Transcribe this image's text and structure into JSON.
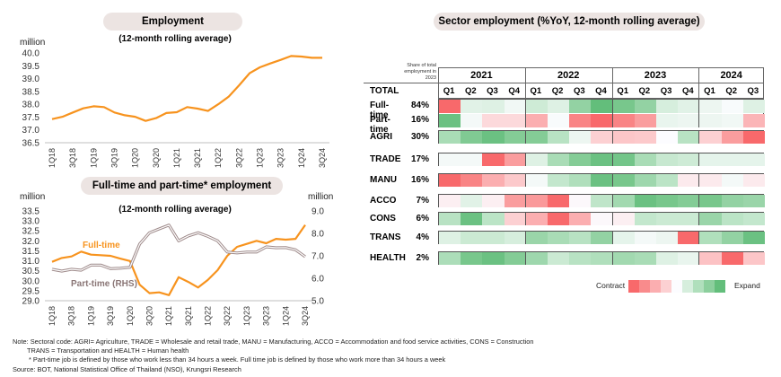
{
  "top_chart": {
    "title": "Employment",
    "subtitle": "(12-month rolling average)",
    "unit_left": "million"
  },
  "bottom_chart": {
    "title": "Full-time and part-time* employment",
    "subtitle": "(12-month rolling average)",
    "unit_left": "million",
    "unit_right": "million",
    "label_fulltime": "Full-time",
    "label_parttime": "Part-time (RHS)"
  },
  "heatmap_panel": {
    "title": "Sector employment (%YoY, 12-month rolling average)",
    "share_header": "Share of total employment in 2023",
    "total_label": "TOTAL",
    "legend_contract": "Contract",
    "legend_expand": "Expand"
  },
  "notes": {
    "line1": "Note: Sectoral code: AGRI= Agriculture, TRADE = Wholesale and retail trade, MANU = Manufacturing, ACCO = Accommodation and food service activities, CONS = Construction",
    "line2": "TRANS = Transportation and HEALTH = Human health",
    "line3": "* Part-time job is defined by those who work less than 34 hours a week. Full time job is defined by those who work  more than 34 hours a week",
    "source": "Source: BOT, National Statistical Office of Thailand (NSO), Krungsri Research"
  },
  "chart_data": [
    {
      "type": "line",
      "title": "Employment",
      "subtitle": "(12-month rolling average)",
      "ylabel": "million",
      "ylim": [
        36.5,
        40.0
      ],
      "yticks": [
        "40.0",
        "39.5",
        "39.0",
        "38.5",
        "38.0",
        "37.5",
        "37.0",
        "36.5"
      ],
      "ytick_values": [
        40.0,
        39.5,
        39.0,
        38.5,
        38.0,
        37.5,
        37.0,
        36.5
      ],
      "x": [
        "1Q18",
        "2Q18",
        "3Q18",
        "4Q18",
        "1Q19",
        "2Q19",
        "3Q19",
        "4Q19",
        "1Q20",
        "2Q20",
        "3Q20",
        "4Q20",
        "1Q21",
        "2Q21",
        "3Q21",
        "4Q21",
        "1Q22",
        "2Q22",
        "3Q22",
        "4Q22",
        "1Q23",
        "2Q23",
        "3Q23",
        "4Q23",
        "1Q24",
        "2Q24",
        "3Q24"
      ],
      "xtick_labels": [
        "1Q18",
        "3Q18",
        "1Q19",
        "3Q19",
        "1Q20",
        "3Q20",
        "1Q21",
        "3Q21",
        "1Q22",
        "3Q22",
        "1Q23",
        "3Q23",
        "1Q24",
        "3Q24"
      ],
      "series": [
        {
          "name": "Employment",
          "color": "#f7931e",
          "values": [
            37.42,
            37.51,
            37.68,
            37.84,
            37.92,
            37.89,
            37.68,
            37.57,
            37.51,
            37.35,
            37.46,
            37.66,
            37.69,
            37.89,
            37.83,
            37.74,
            38.0,
            38.3,
            38.74,
            39.21,
            39.44,
            39.59,
            39.73,
            39.88,
            39.86,
            39.81,
            39.81
          ]
        }
      ],
      "grid": false
    },
    {
      "type": "line",
      "title": "Full-time and part-time* employment",
      "subtitle": "(12-month rolling average)",
      "ylabel": "million",
      "ylabel_right": "million",
      "ylim": [
        29.0,
        33.5
      ],
      "ylim_right": [
        5.0,
        9.0
      ],
      "yticks": [
        "33.5",
        "33.0",
        "32.5",
        "32.0",
        "31.5",
        "31.0",
        "30.5",
        "30.0",
        "29.5",
        "29.0"
      ],
      "ytick_values": [
        33.5,
        33.0,
        32.5,
        32.0,
        31.5,
        31.0,
        30.5,
        30.0,
        29.5,
        29.0
      ],
      "yticks_right": [
        "9.0",
        "8.0",
        "7.0",
        "6.0",
        "5.0"
      ],
      "ytick_values_right": [
        9.0,
        8.0,
        7.0,
        6.0,
        5.0
      ],
      "x": [
        "1Q18",
        "2Q18",
        "3Q18",
        "4Q18",
        "1Q19",
        "2Q19",
        "3Q19",
        "4Q19",
        "1Q20",
        "2Q20",
        "3Q20",
        "4Q20",
        "1Q21",
        "2Q21",
        "3Q21",
        "4Q21",
        "1Q22",
        "2Q22",
        "3Q22",
        "4Q22",
        "1Q23",
        "2Q23",
        "3Q23",
        "4Q23",
        "1Q24",
        "2Q24",
        "3Q24"
      ],
      "xtick_labels": [
        "1Q18",
        "3Q18",
        "1Q19",
        "3Q19",
        "1Q20",
        "3Q20",
        "1Q21",
        "3Q21",
        "1Q22",
        "3Q22",
        "1Q23",
        "3Q23",
        "1Q24",
        "3Q24"
      ],
      "series": [
        {
          "name": "Full-time",
          "axis": "left",
          "color": "#f7931e",
          "values": [
            30.95,
            31.14,
            31.22,
            31.46,
            31.31,
            31.28,
            31.25,
            31.11,
            30.99,
            29.8,
            29.38,
            29.42,
            29.28,
            30.18,
            29.94,
            29.66,
            30.04,
            30.53,
            31.25,
            31.7,
            31.85,
            32.0,
            31.88,
            32.1,
            32.06,
            32.1,
            32.8
          ]
        },
        {
          "name": "Part-time (RHS)",
          "axis": "right",
          "color": "#9e8a8a",
          "values": [
            6.4,
            6.32,
            6.4,
            6.36,
            6.59,
            6.59,
            6.43,
            6.45,
            6.49,
            7.53,
            8.03,
            8.2,
            8.37,
            7.67,
            7.89,
            8.03,
            7.87,
            7.67,
            7.17,
            7.13,
            7.17,
            7.17,
            7.4,
            7.36,
            7.37,
            7.27,
            6.96
          ]
        }
      ],
      "grid": false
    },
    {
      "type": "heatmap",
      "title": "Sector employment (%YoY, 12-month rolling average)",
      "years": [
        {
          "label": "2021",
          "quarters": [
            "Q1",
            "Q2",
            "Q3",
            "Q4"
          ]
        },
        {
          "label": "2022",
          "quarters": [
            "Q1",
            "Q2",
            "Q3",
            "Q4"
          ]
        },
        {
          "label": "2023",
          "quarters": [
            "Q1",
            "Q2",
            "Q3",
            "Q4"
          ]
        },
        {
          "label": "2024",
          "quarters": [
            "Q1",
            "Q2",
            "Q3"
          ]
        }
      ],
      "scale_note": "levels -4 (strong contract) .. 0 (neutral) .. +4 (strong expand)",
      "legend_levels": [
        -4,
        -3,
        -2,
        -1,
        0,
        1,
        2,
        3,
        4
      ],
      "legend_colors": [
        "#f8696b",
        "#f98b8c",
        "#fbaeb0",
        "#fcd0d2",
        "#fcfcff",
        "#d6eedd",
        "#b0dfbc",
        "#8ccf9d",
        "#63be7b"
      ],
      "groups": [
        {
          "rows": [
            {
              "label": "Full-time",
              "share": "84%",
              "levels": [
                -4,
                0.7,
                0.8,
                0.3,
                1.2,
                0.8,
                2.8,
                4,
                3.5,
                2.8,
                1,
                0.7,
                0.4,
                0.1,
                0.8
              ]
            },
            {
              "label": "Part-time",
              "share": "16%",
              "levels": [
                3.8,
                0.2,
                -0.8,
                -0.8,
                -2,
                0.1,
                -3.2,
                -4,
                -3.2,
                -2.5,
                0.5,
                0.4,
                0.4,
                0.3,
                -1.8
              ]
            }
          ]
        },
        {
          "rows": [
            {
              "label": "AGRI",
              "share": "30%",
              "levels": [
                2.2,
                3.3,
                3.8,
                3.2,
                3.2,
                1.8,
                0.4,
                -1,
                -1.3,
                -1.2,
                0,
                1.8,
                -1,
                -2.5,
                -4
              ]
            }
          ]
        },
        {
          "rows": [
            {
              "label": "TRADE",
              "share": "17%",
              "levels": [
                0.2,
                0.2,
                -4,
                -2.5,
                0.8,
                2.2,
                3.2,
                3.8,
                3.6,
                2.2,
                1.4,
                1.2,
                0.6,
                0.6,
                0.6
              ]
            }
          ]
        },
        {
          "rows": [
            {
              "label": "MANU",
              "share": "16%",
              "levels": [
                -4,
                -3.2,
                -2,
                -1.2,
                0.2,
                1.5,
                2,
                3.8,
                3.5,
                2.5,
                1.7,
                -0.4,
                -0.4,
                0.2,
                -0.4
              ]
            }
          ]
        },
        {
          "rows": [
            {
              "label": "ACCO",
              "share": "7%",
              "levels": [
                -0.3,
                0.7,
                -0.3,
                -2.5,
                -2.6,
                -4,
                -0.1,
                1.6,
                2.4,
                3.8,
                3.5,
                3.2,
                3.5,
                2.8,
                2.6
              ]
            }
          ]
        },
        {
          "rows": [
            {
              "label": "CONS",
              "share": "6%",
              "levels": [
                1.8,
                3.8,
                1.7,
                -1,
                -2,
                -4,
                -2,
                -0.1,
                -0.3,
                1.5,
                1.3,
                1.3,
                2.6,
                1.7,
                1.5
              ]
            }
          ]
        },
        {
          "rows": [
            {
              "label": "TRANS",
              "share": "4%",
              "levels": [
                0.8,
                1.3,
                1.3,
                1.0,
                2.6,
                2.2,
                1.8,
                2.8,
                0.6,
                0.2,
                0.4,
                -4,
                2,
                2.8,
                3.8
              ]
            }
          ]
        },
        {
          "rows": [
            {
              "label": "HEALTH",
              "share": "2%",
              "levels": [
                2.1,
                3.5,
                3.8,
                3.2,
                2.5,
                1.3,
                1.8,
                2,
                2.4,
                2.2,
                0.8,
                0.5,
                -1.4,
                -4,
                -1.3
              ]
            }
          ]
        }
      ]
    }
  ]
}
